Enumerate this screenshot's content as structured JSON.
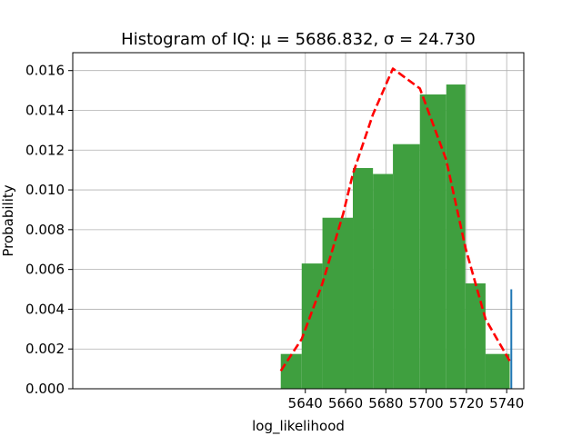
{
  "chart_data": {
    "type": "bar",
    "title": "Histogram of IQ: μ = 5686.832,  σ = 24.730",
    "xlabel": "log_likelihood",
    "ylabel": "Probability",
    "xlim": [
      5524.5,
      5748.5
    ],
    "ylim": [
      0,
      0.0169
    ],
    "x_ticks": [
      5640,
      5660,
      5680,
      5700,
      5720,
      5740
    ],
    "y_ticks": [
      0.0,
      0.002,
      0.004,
      0.006,
      0.008,
      0.01,
      0.012,
      0.014,
      0.016
    ],
    "y_tick_labels": [
      "0.000",
      "0.002",
      "0.004",
      "0.006",
      "0.008",
      "0.010",
      "0.012",
      "0.014",
      "0.016"
    ],
    "grid": true,
    "series": [
      {
        "kind": "histogram",
        "bin_edges": [
          5627.8,
          5638.2,
          5648.5,
          5663.6,
          5673.6,
          5683.5,
          5696.9,
          5710.0,
          5719.5,
          5729.5,
          5741.5
        ],
        "values": [
          0.00175,
          0.0063,
          0.0086,
          0.0111,
          0.0108,
          0.0123,
          0.0148,
          0.0153,
          0.0053,
          0.00175
        ],
        "color": "#3f9f3f"
      },
      {
        "kind": "line",
        "style": "dashed",
        "color": "#ff0000",
        "x": [
          5627.8,
          5638.2,
          5648.5,
          5658.8,
          5663.6,
          5673.6,
          5683.5,
          5696.9,
          5710.0,
          5719.5,
          5729.5,
          5741.5
        ],
        "y": [
          0.0009,
          0.0025,
          0.0053,
          0.0088,
          0.0108,
          0.0138,
          0.0161,
          0.0151,
          0.0115,
          0.0071,
          0.0035,
          0.0014
        ]
      },
      {
        "kind": "vline",
        "color": "#1f77b4",
        "x": 5742.3,
        "y": [
          0,
          0.005
        ]
      }
    ]
  }
}
